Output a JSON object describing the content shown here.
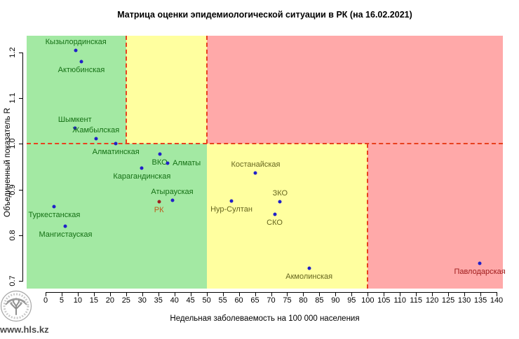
{
  "title": "Матрица оценки эпидемиологической ситуации в РК (на 16.02.2021)",
  "watermark": {
    "logo": "tree-logo",
    "url": "www.hls.kz"
  },
  "colors": {
    "zone_green_bg": "#A3E9A3",
    "zone_yellow_bg": "#FFFF9F",
    "zone_red_bg": "#FFA9A9",
    "dashed_line": "#E8401E",
    "point_blue": "#2020C8",
    "point_rk": "#9E2020",
    "label_green": "#157015",
    "label_yellow": "#66661F",
    "label_red": "#9E1A1A",
    "label_rk": "#BF5A1A"
  },
  "chart_data": {
    "type": "scatter",
    "title": "Матрица оценки эпидемиологической ситуации в РК (на 16.02.2021)",
    "xlabel": "Недельная заболеваемость на 100 000 населения",
    "ylabel": "Объединенный показатель R",
    "xlim": [
      -6,
      142
    ],
    "ylim": [
      0.683,
      1.237
    ],
    "x_ticks": [
      0,
      5,
      10,
      15,
      20,
      25,
      30,
      35,
      40,
      45,
      50,
      55,
      60,
      65,
      70,
      75,
      80,
      85,
      90,
      95,
      100,
      105,
      110,
      115,
      120,
      125,
      130,
      135,
      140
    ],
    "y_ticks": [
      0.7,
      0.8,
      0.9,
      1.0,
      1.1,
      1.2
    ],
    "grid": false,
    "legend": "none",
    "thresholds": {
      "r_reference_line": 1.0,
      "upper_green_yellow_x": 25,
      "upper_yellow_red_x": 50,
      "lower_green_yellow_x": 50,
      "lower_yellow_red_x": 100
    },
    "points": [
      {
        "name": "Кызылординская",
        "x": 9.4,
        "r": 1.205,
        "zone": "green",
        "label_pos": "above"
      },
      {
        "name": "Актюбинская",
        "x": 11.1,
        "r": 1.18,
        "zone": "green",
        "label_pos": "below"
      },
      {
        "name": "Шымкент",
        "x": 9.1,
        "r": 1.034,
        "zone": "green",
        "label_pos": "above"
      },
      {
        "name": "Жамбылская",
        "x": 15.6,
        "r": 1.011,
        "zone": "green",
        "label_pos": "above"
      },
      {
        "name": "Алматинская",
        "x": 21.8,
        "r": 1.0,
        "zone": "green",
        "label_pos": "below"
      },
      {
        "name": "ВКО",
        "x": 35.4,
        "r": 0.977,
        "zone": "green",
        "label_pos": "below"
      },
      {
        "name": "Алматы",
        "x": 37.9,
        "r": 0.958,
        "zone": "green",
        "label_pos": "right"
      },
      {
        "name": "Карагандинская",
        "x": 29.9,
        "r": 0.947,
        "zone": "green",
        "label_pos": "below"
      },
      {
        "name": "Костанайская",
        "x": 65.2,
        "r": 0.936,
        "zone": "yellow",
        "label_pos": "above"
      },
      {
        "name": "Атырауская",
        "x": 39.3,
        "r": 0.876,
        "zone": "green",
        "label_pos": "above"
      },
      {
        "name": "РК",
        "x": 35.2,
        "r": 0.874,
        "zone": "rk",
        "label_pos": "below"
      },
      {
        "name": "Нур-Султан",
        "x": 57.7,
        "r": 0.875,
        "zone": "yellow",
        "label_pos": "below"
      },
      {
        "name": "ЗКО",
        "x": 72.8,
        "r": 0.873,
        "zone": "yellow",
        "label_pos": "above"
      },
      {
        "name": "СКО",
        "x": 71.1,
        "r": 0.845,
        "zone": "yellow",
        "label_pos": "below"
      },
      {
        "name": "Туркестанская",
        "x": 2.7,
        "r": 0.863,
        "zone": "green",
        "label_pos": "below"
      },
      {
        "name": "Мангистауская",
        "x": 6.2,
        "r": 0.82,
        "zone": "green",
        "label_pos": "below"
      },
      {
        "name": "Акмолинская",
        "x": 81.8,
        "r": 0.727,
        "zone": "yellow",
        "label_pos": "below"
      },
      {
        "name": "Павлодарская",
        "x": 134.8,
        "r": 0.739,
        "zone": "red",
        "label_pos": "below"
      }
    ]
  }
}
